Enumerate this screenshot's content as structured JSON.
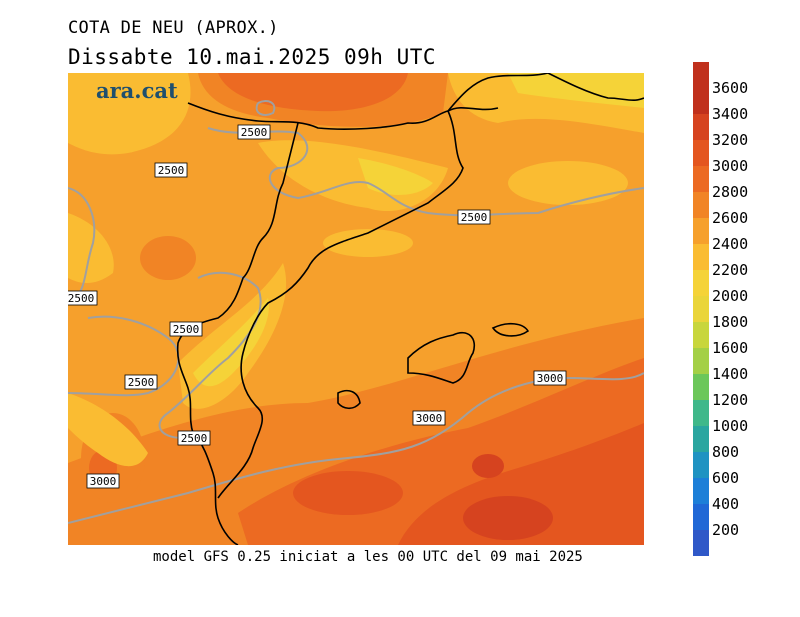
{
  "header": {
    "title": "COTA DE NEU (APROX.)",
    "subtitle": "Dissabte   10.mai.2025 09h UTC"
  },
  "brand": {
    "logo_text": "ara.cat"
  },
  "footer": {
    "text": "model GFS 0.25 iniciat a les 00 UTC del 09 mai 2025"
  },
  "map": {
    "contour_labels": [
      "2500",
      "2500",
      "2500",
      "2500",
      "2500",
      "2500",
      "2500",
      "3000",
      "3000",
      "3000"
    ],
    "land_outline_color": "#000000",
    "contour_line_color": "#a0a0a0"
  },
  "legend": {
    "labels": [
      "3600",
      "3400",
      "3200",
      "3000",
      "2800",
      "2600",
      "2400",
      "2200",
      "2000",
      "1800",
      "1600",
      "1400",
      "1200",
      "1000",
      "800",
      "600",
      "400",
      "200"
    ],
    "colors": [
      "#c0301c",
      "#d6431f",
      "#e4561f",
      "#ec6a22",
      "#f18425",
      "#f6a02c",
      "#fabc32",
      "#f5d338",
      "#ead53a",
      "#c8d63c",
      "#a4d046",
      "#6cc75a",
      "#3fb88a",
      "#2aa6a0",
      "#1f93c2",
      "#1d7fd8",
      "#2068d6",
      "#2f58c8"
    ]
  }
}
